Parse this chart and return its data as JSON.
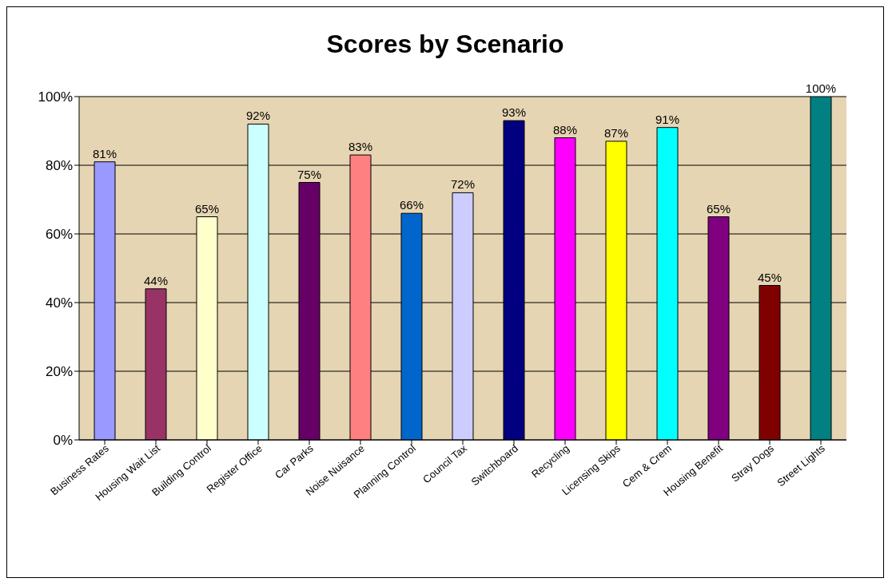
{
  "chart_data": {
    "type": "bar",
    "title": "Scores by Scenario",
    "categories": [
      "Business Rates",
      "Housing Wait List",
      "Building Control",
      "Register Office",
      "Car Parks",
      "Noise Nuisance",
      "Planning Control",
      "Council Tax",
      "Switchboard",
      "Recycling",
      "Licensing Skips",
      "Cem & Crem",
      "Housing Benefit",
      "Stray Dogs",
      "Street Lights"
    ],
    "values": [
      81,
      44,
      65,
      92,
      75,
      83,
      66,
      72,
      93,
      88,
      87,
      91,
      65,
      45,
      100
    ],
    "colors": [
      "#9999ff",
      "#993366",
      "#ffffcc",
      "#ccffff",
      "#660066",
      "#ff8080",
      "#0066cc",
      "#ccccff",
      "#000080",
      "#ff00ff",
      "#ffff00",
      "#00ffff",
      "#800080",
      "#800000",
      "#008080"
    ],
    "value_labels": [
      "81%",
      "44%",
      "65%",
      "92%",
      "75%",
      "83%",
      "66%",
      "72%",
      "93%",
      "88%",
      "87%",
      "91%",
      "65%",
      "45%",
      "100%"
    ],
    "ylim": [
      0,
      100
    ],
    "yticks": [
      {
        "value": 0,
        "label": "0%"
      },
      {
        "value": 20,
        "label": "20%"
      },
      {
        "value": 40,
        "label": "40%"
      },
      {
        "value": 60,
        "label": "60%"
      },
      {
        "value": 80,
        "label": "80%"
      },
      {
        "value": 100,
        "label": "100%"
      }
    ],
    "grid": "y"
  }
}
